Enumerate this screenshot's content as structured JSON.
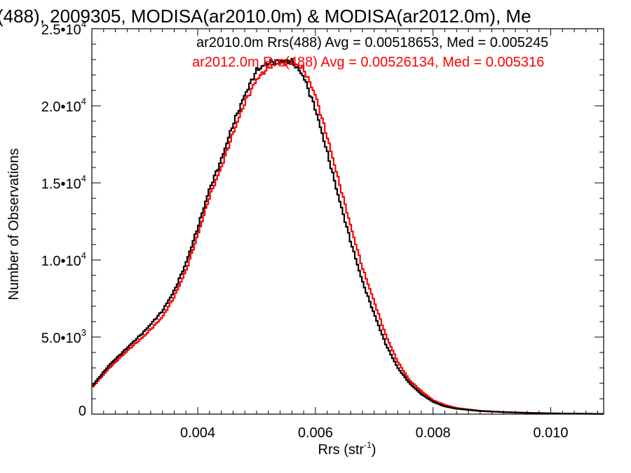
{
  "chart_data": {
    "type": "line",
    "title": "(488), 2009305, MODISA(ar2010.0m) & MODISA(ar2012.0m), Me",
    "xlabel": "Rrs (str",
    "xlabel_sup": "-1",
    "xlabel_close": ")",
    "ylabel": "Number of Observations",
    "xlim": [
      0.0022,
      0.0109
    ],
    "ylim": [
      0,
      25000
    ],
    "grid": false,
    "x_ticks": [
      {
        "value": 0.004,
        "label": "0.004"
      },
      {
        "value": 0.006,
        "label": "0.006"
      },
      {
        "value": 0.008,
        "label": "0.008"
      },
      {
        "value": 0.01,
        "label": "0.010"
      }
    ],
    "y_ticks": [
      {
        "value": 0,
        "mant": "0",
        "exp": ""
      },
      {
        "value": 5000,
        "mant": "5.0•10",
        "exp": "3"
      },
      {
        "value": 10000,
        "mant": "1.0•10",
        "exp": "4"
      },
      {
        "value": 15000,
        "mant": "1.5•10",
        "exp": "4"
      },
      {
        "value": 20000,
        "mant": "2.0•10",
        "exp": "4"
      },
      {
        "value": 25000,
        "mant": "2.5•10",
        "exp": "4"
      }
    ],
    "legend_placement": "top-right",
    "series": [
      {
        "name": "ar2010.0m",
        "legend": "ar2010.0m Rrs(488) Avg = 0.00518653, Med = 0.005245",
        "color": "#000000",
        "points": [
          [
            0.0022,
            1800
          ],
          [
            0.0025,
            3200
          ],
          [
            0.0028,
            4300
          ],
          [
            0.0031,
            5400
          ],
          [
            0.0034,
            6700
          ],
          [
            0.0036,
            8000
          ],
          [
            0.0038,
            9800
          ],
          [
            0.004,
            12100
          ],
          [
            0.0042,
            14600
          ],
          [
            0.0044,
            16500
          ],
          [
            0.0046,
            18800
          ],
          [
            0.0048,
            20700
          ],
          [
            0.005,
            22300
          ],
          [
            0.0052,
            22800
          ],
          [
            0.0054,
            22900
          ],
          [
            0.0056,
            22900
          ],
          [
            0.0058,
            21900
          ],
          [
            0.006,
            19800
          ],
          [
            0.0062,
            17000
          ],
          [
            0.0064,
            14000
          ],
          [
            0.0066,
            11200
          ],
          [
            0.0068,
            8600
          ],
          [
            0.007,
            6500
          ],
          [
            0.0072,
            4500
          ],
          [
            0.0074,
            3000
          ],
          [
            0.0076,
            2000
          ],
          [
            0.0078,
            1300
          ],
          [
            0.008,
            800
          ],
          [
            0.0082,
            500
          ],
          [
            0.0084,
            350
          ],
          [
            0.0088,
            200
          ],
          [
            0.0092,
            130
          ],
          [
            0.0096,
            80
          ],
          [
            0.01,
            50
          ],
          [
            0.0104,
            30
          ],
          [
            0.0109,
            15
          ]
        ]
      },
      {
        "name": "ar2012.0m",
        "legend": "ar2012.0m Rrs(488) Avg = 0.00526134, Med = 0.005316",
        "color": "#ff0000",
        "points": [
          [
            0.0022,
            1700
          ],
          [
            0.0025,
            3000
          ],
          [
            0.0028,
            4100
          ],
          [
            0.0031,
            5100
          ],
          [
            0.0034,
            6300
          ],
          [
            0.0036,
            7600
          ],
          [
            0.0038,
            9300
          ],
          [
            0.004,
            11600
          ],
          [
            0.0042,
            14100
          ],
          [
            0.0044,
            16000
          ],
          [
            0.0046,
            18200
          ],
          [
            0.0048,
            20200
          ],
          [
            0.005,
            21700
          ],
          [
            0.0052,
            22500
          ],
          [
            0.0054,
            22800
          ],
          [
            0.0056,
            22800
          ],
          [
            0.0058,
            22400
          ],
          [
            0.006,
            20700
          ],
          [
            0.0062,
            18000
          ],
          [
            0.0064,
            15100
          ],
          [
            0.0066,
            12200
          ],
          [
            0.0068,
            9500
          ],
          [
            0.007,
            7300
          ],
          [
            0.0072,
            5100
          ],
          [
            0.0074,
            3400
          ],
          [
            0.0076,
            2200
          ],
          [
            0.0078,
            1500
          ],
          [
            0.008,
            900
          ],
          [
            0.0082,
            600
          ],
          [
            0.0084,
            400
          ],
          [
            0.0088,
            220
          ],
          [
            0.0092,
            140
          ],
          [
            0.0096,
            90
          ],
          [
            0.01,
            55
          ],
          [
            0.0104,
            35
          ],
          [
            0.0109,
            18
          ]
        ]
      }
    ]
  }
}
